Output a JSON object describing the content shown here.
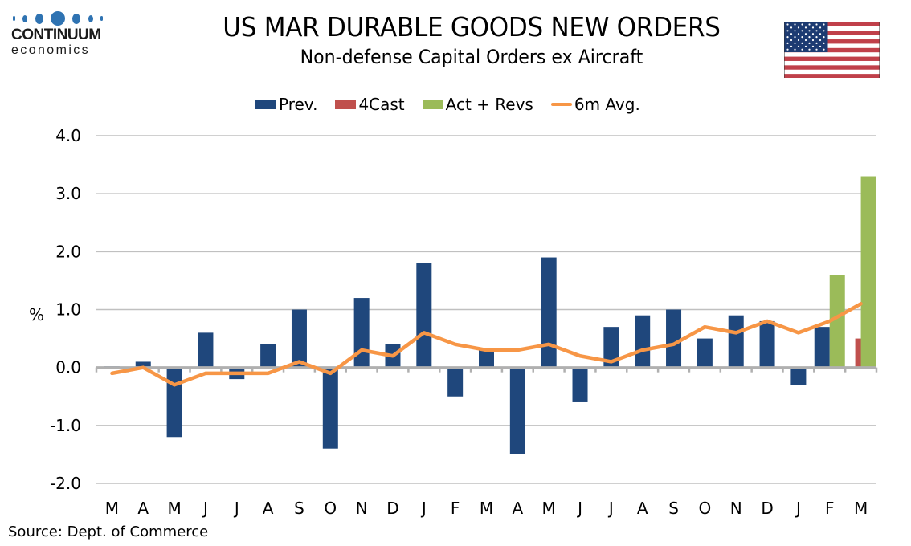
{
  "brand": {
    "name": "CONTINUUM",
    "subname": "economics",
    "dot_color": "#2f73b2"
  },
  "header": {
    "title": "US MAR DURABLE GOODS NEW ORDERS",
    "subtitle": "Non-defense Capital Orders ex Aircraft",
    "flag": "us-flag-icon"
  },
  "footer": {
    "source": "Source: Dept. of Commerce"
  },
  "colors": {
    "prev": "#1f477c",
    "forecast": "#c0504d",
    "actual": "#9bbb59",
    "avg": "#f79646",
    "grid": "#c0c0c0"
  },
  "chart_data": {
    "type": "bar",
    "title": "US MAR DURABLE GOODS NEW ORDERS",
    "subtitle": "Non-defense Capital Orders ex Aircraft",
    "xlabel": "",
    "ylabel": "%",
    "ylim": [
      -2.0,
      4.0
    ],
    "yticks": [
      4.0,
      3.0,
      2.0,
      1.0,
      0.0,
      -1.0,
      -2.0
    ],
    "ytick_labels": [
      "4.0",
      "3.0",
      "2.0",
      "1.0",
      "0.0",
      "-1.0",
      "-2.0"
    ],
    "grid": true,
    "legend_position": "top-center",
    "categories": [
      "M",
      "A",
      "M",
      "J",
      "J",
      "A",
      "S",
      "O",
      "N",
      "D",
      "J",
      "F",
      "M",
      "A",
      "M",
      "J",
      "J",
      "A",
      "S",
      "O",
      "N",
      "D",
      "J",
      "F",
      "M"
    ],
    "series": [
      {
        "name": "Prev.",
        "kind": "bar",
        "values": [
          0.02,
          0.1,
          -1.2,
          0.6,
          -0.2,
          0.4,
          1.0,
          -1.4,
          1.2,
          0.4,
          1.8,
          -0.5,
          0.3,
          -1.5,
          1.9,
          -0.6,
          0.7,
          0.9,
          1.0,
          0.5,
          0.9,
          0.8,
          -0.3,
          0.7,
          null
        ]
      },
      {
        "name": "4Cast",
        "kind": "bar",
        "values": [
          null,
          null,
          null,
          null,
          null,
          null,
          null,
          null,
          null,
          null,
          null,
          null,
          null,
          null,
          null,
          null,
          null,
          null,
          null,
          null,
          null,
          null,
          null,
          null,
          0.5
        ]
      },
      {
        "name": "Act + Revs",
        "kind": "bar",
        "values": [
          null,
          null,
          null,
          null,
          null,
          null,
          null,
          null,
          null,
          null,
          null,
          null,
          null,
          null,
          null,
          null,
          null,
          null,
          null,
          null,
          null,
          null,
          null,
          1.6,
          3.3
        ]
      },
      {
        "name": "6m Avg.",
        "kind": "line",
        "values": [
          -0.1,
          0.0,
          -0.3,
          -0.1,
          -0.1,
          -0.1,
          0.1,
          -0.1,
          0.3,
          0.2,
          0.6,
          0.4,
          0.3,
          0.3,
          0.4,
          0.2,
          0.1,
          0.3,
          0.4,
          0.7,
          0.6,
          0.8,
          0.6,
          0.8,
          1.1
        ]
      }
    ]
  }
}
